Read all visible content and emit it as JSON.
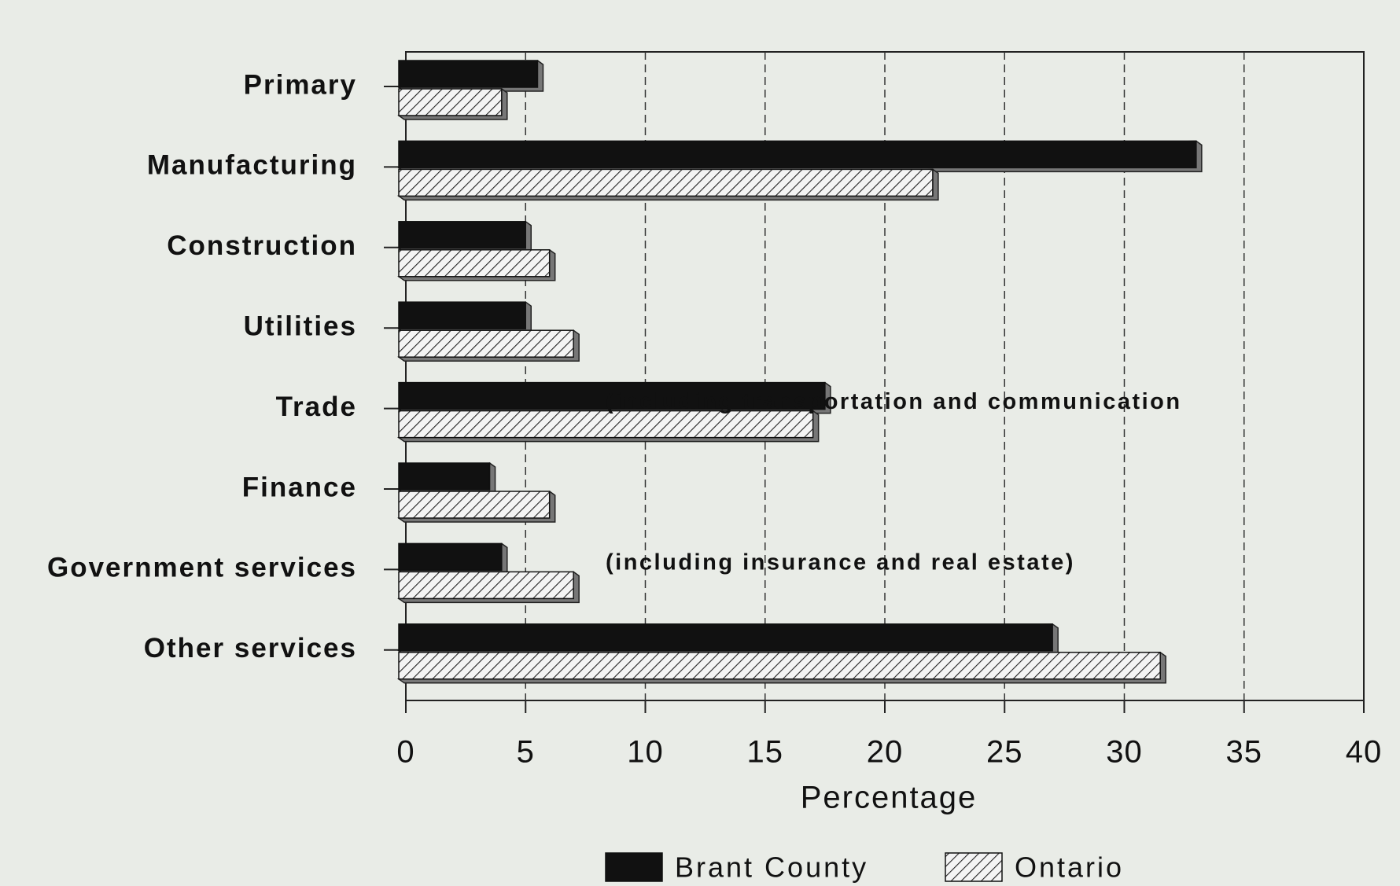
{
  "chart_data": {
    "type": "bar",
    "orientation": "horizontal",
    "categories": [
      "Primary",
      "Manufacturing",
      "Construction",
      "Utilities",
      "Trade",
      "Finance",
      "Government services",
      "Other services"
    ],
    "series": [
      {
        "name": "Brant County",
        "color": "#111111",
        "values": [
          5.5,
          33,
          5,
          5,
          17.5,
          3.5,
          4,
          27
        ]
      },
      {
        "name": "Ontario",
        "color": "#ffffff",
        "hatch": true,
        "values": [
          4,
          22,
          6,
          7,
          17,
          6,
          7,
          31.5
        ]
      }
    ],
    "xlabel": "Percentage",
    "xlim": [
      0,
      40
    ],
    "xticks": [
      0,
      5,
      10,
      15,
      20,
      25,
      30,
      35,
      40
    ],
    "grid": true,
    "annotations": [
      {
        "text": "(including transportation and communication",
        "category": 3
      },
      {
        "text": "(including insurance and real estate)",
        "category": 5
      }
    ]
  }
}
